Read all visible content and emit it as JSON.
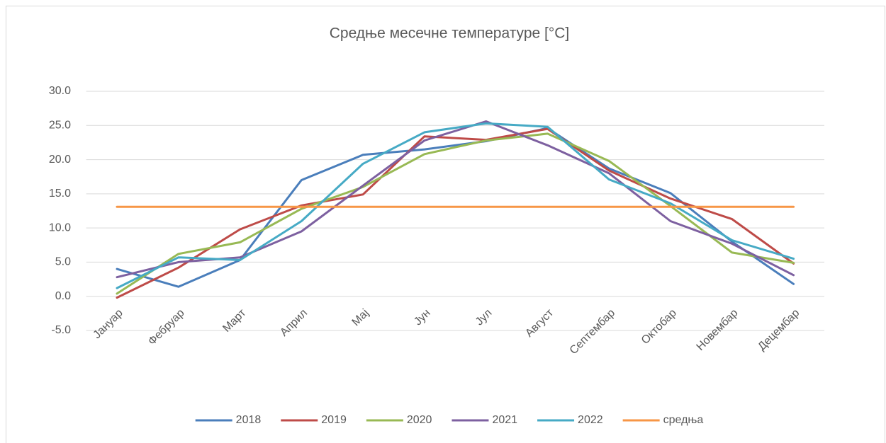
{
  "chart_data": {
    "type": "line",
    "title": "Средње месечне температуре [°C]",
    "categories": [
      "Јануар",
      "Фебруар",
      "Март",
      "Април",
      "Мај",
      "Јун",
      "Јул",
      "Август",
      "Септембар",
      "Октобар",
      "Новембар",
      "Децембар"
    ],
    "series": [
      {
        "name": "2018",
        "color": "#4a7ebb",
        "values": [
          4.0,
          1.4,
          5.3,
          17.0,
          20.7,
          21.5,
          22.7,
          24.6,
          18.7,
          15.1,
          8.0,
          1.8
        ]
      },
      {
        "name": "2019",
        "color": "#be4b48",
        "values": [
          -0.2,
          4.2,
          9.8,
          13.3,
          14.9,
          23.4,
          22.9,
          24.5,
          18.4,
          14.3,
          11.3,
          4.8
        ]
      },
      {
        "name": "2020",
        "color": "#98b954",
        "values": [
          0.4,
          6.2,
          7.9,
          12.8,
          16.0,
          20.8,
          22.8,
          23.8,
          19.8,
          13.2,
          6.4,
          4.9
        ]
      },
      {
        "name": "2021",
        "color": "#7d60a0",
        "values": [
          2.8,
          5.0,
          5.7,
          9.5,
          16.2,
          22.8,
          25.6,
          22.1,
          18.0,
          11.0,
          7.7,
          3.1
        ]
      },
      {
        "name": "2022",
        "color": "#46aac5",
        "values": [
          1.2,
          5.7,
          5.3,
          11.0,
          19.4,
          24.0,
          25.3,
          24.8,
          17.1,
          13.6,
          8.2,
          5.5
        ]
      },
      {
        "name": "средња",
        "color": "#f79646",
        "values": [
          13.1,
          13.1,
          13.1,
          13.1,
          13.1,
          13.1,
          13.1,
          13.1,
          13.1,
          13.1,
          13.1,
          13.1
        ]
      }
    ],
    "ylim": [
      -5,
      30
    ],
    "yticks": [
      {
        "value": -5,
        "label": "-5.0"
      },
      {
        "value": 0,
        "label": "0.0"
      },
      {
        "value": 5,
        "label": "5.0"
      },
      {
        "value": 10,
        "label": "10.0"
      },
      {
        "value": 15,
        "label": "15.0"
      },
      {
        "value": 20,
        "label": "20.0"
      },
      {
        "value": 25,
        "label": "25.0"
      },
      {
        "value": 30,
        "label": "30.0"
      }
    ],
    "grid": true,
    "legend": "bottom"
  }
}
